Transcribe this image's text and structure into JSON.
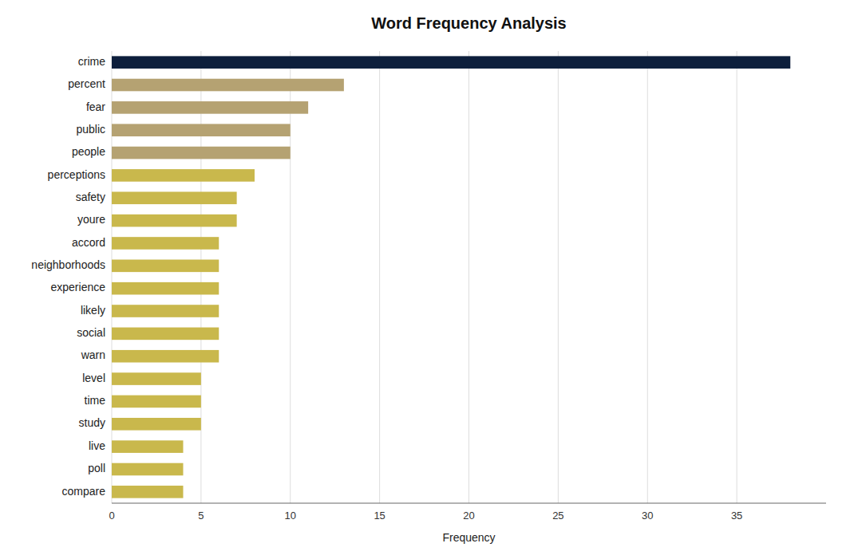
{
  "chart_data": {
    "type": "bar",
    "orientation": "horizontal",
    "title": "Word Frequency Analysis",
    "xlabel": "Frequency",
    "categories": [
      "crime",
      "percent",
      "fear",
      "public",
      "people",
      "perceptions",
      "safety",
      "youre",
      "accord",
      "neighborhoods",
      "experience",
      "likely",
      "social",
      "warn",
      "level",
      "time",
      "study",
      "live",
      "poll",
      "compare"
    ],
    "values": [
      38,
      13,
      11,
      10,
      10,
      8,
      7,
      7,
      6,
      6,
      6,
      6,
      6,
      6,
      5,
      5,
      5,
      4,
      4,
      4
    ],
    "colors": [
      "#0d1f3c",
      "#b5a272",
      "#b5a272",
      "#b5a272",
      "#b5a272",
      "#c9b84c",
      "#c9b84c",
      "#c9b84c",
      "#c9b84c",
      "#c9b84c",
      "#c9b84c",
      "#c9b84c",
      "#c9b84c",
      "#c9b84c",
      "#c9b84c",
      "#c9b84c",
      "#c9b84c",
      "#c9b84c",
      "#c9b84c",
      "#c9b84c"
    ],
    "xlim": [
      0,
      40
    ],
    "xticks": [
      0,
      5,
      10,
      15,
      20,
      25,
      30,
      35
    ],
    "grid": true
  }
}
